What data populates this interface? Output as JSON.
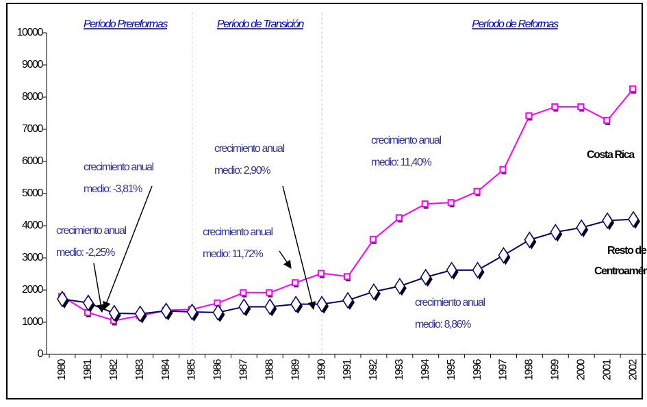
{
  "chart_data": {
    "type": "line",
    "categories": [
      "1980",
      "1981",
      "1982",
      "1983",
      "1984",
      "1985",
      "1986",
      "1987",
      "1988",
      "1989",
      "1990",
      "1991",
      "1992",
      "1993",
      "1994",
      "1995",
      "1996",
      "1997",
      "1998",
      "1999",
      "2000",
      "2001",
      "2002"
    ],
    "series": [
      {
        "name": "Costa Rica",
        "color": "#ff00ff",
        "values": [
          1800,
          1300,
          1050,
          1200,
          1370,
          1400,
          1600,
          1920,
          1920,
          2230,
          2520,
          2420,
          3580,
          4250,
          4680,
          4720,
          5070,
          5750,
          7420,
          7700,
          7700,
          7280,
          8260
        ]
      },
      {
        "name": "Resto de Centroamérica",
        "color": "#000066",
        "values": [
          1720,
          1600,
          1280,
          1260,
          1350,
          1320,
          1300,
          1480,
          1480,
          1560,
          1560,
          1680,
          1950,
          2120,
          2400,
          2620,
          2620,
          3080,
          3560,
          3800,
          3940,
          4160,
          4200
        ]
      }
    ],
    "ylim": [
      0,
      10000
    ],
    "yticks": [
      0,
      1000,
      2000,
      3000,
      4000,
      5000,
      6000,
      7000,
      8000,
      9000,
      10000
    ],
    "periods": [
      "Período Prereformas",
      "Período de Transición",
      "Período de Reformas"
    ],
    "annotations": [
      [
        "crecimiento anual",
        "medio: -2,25%"
      ],
      [
        "crecimiento anual",
        "medio: -3,81%"
      ],
      [
        "crecimiento anual",
        "medio: 11,72%"
      ],
      [
        "crecimiento anual",
        "medio: 2,90%"
      ],
      [
        "crecimiento anual",
        "medio: 11,40%"
      ],
      [
        "crecimiento anual",
        "medio: 8,86%"
      ]
    ],
    "series_labels": [
      [
        "Costa Rica"
      ],
      [
        "Resto de",
        "Centroamérica"
      ]
    ]
  }
}
